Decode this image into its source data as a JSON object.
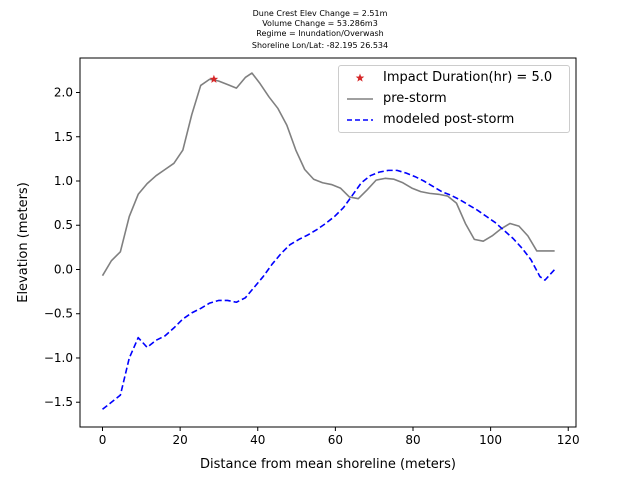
{
  "header": {
    "lines": [
      "Dune Crest Elev Change = 2.51m",
      "Volume Change = 53.286m3",
      "Regime = Inundation/Overwash",
      "Shoreline Lon/Lat: -82.195 26.534"
    ]
  },
  "colors": {
    "pre_storm": "#808080",
    "post_storm": "#0000ff",
    "impact_marker": "#d62728"
  },
  "chart_data": {
    "type": "line",
    "xlabel": "Distance from mean shoreline (meters)",
    "ylabel": "Elevation (meters)",
    "xlim": [
      -5.8,
      122
    ],
    "ylim": [
      -1.78,
      2.39
    ],
    "xticks": [
      0,
      20,
      40,
      60,
      80,
      100,
      120
    ],
    "yticks": [
      -1.5,
      -1.0,
      -0.5,
      0.0,
      0.5,
      1.0,
      1.5,
      2.0
    ],
    "ytick_labels": [
      "−1.5",
      "−1.0",
      "−0.5",
      "0.0",
      "0.5",
      "1.0",
      "1.5",
      "2.0"
    ],
    "grid": false,
    "legend_position": "upper right",
    "series": [
      {
        "name": "pre-storm",
        "style": "solid",
        "color": "#808080",
        "x": [
          0,
          2.3,
          4.6,
          6.9,
          9.2,
          11.5,
          13.8,
          16.1,
          18.4,
          20.7,
          23.0,
          25.3,
          27.6,
          29.9,
          32.2,
          34.5,
          36.8,
          38.5,
          40.6,
          42.9,
          45.2,
          47.5,
          49.8,
          52.1,
          54.4,
          56.7,
          59.0,
          61.3,
          63.6,
          65.9,
          68.2,
          70.5,
          72.8,
          75.1,
          77.4,
          79.7,
          82.0,
          84.3,
          86.6,
          88.9,
          91.2,
          93.5,
          95.8,
          98.1,
          100.4,
          102.7,
          105.0,
          107.3,
          109.6,
          111.9,
          114.2,
          116.5
        ],
        "values": [
          -0.07,
          0.1,
          0.2,
          0.6,
          0.85,
          0.97,
          1.06,
          1.13,
          1.2,
          1.35,
          1.75,
          2.08,
          2.15,
          2.13,
          2.09,
          2.05,
          2.17,
          2.22,
          2.1,
          1.95,
          1.82,
          1.63,
          1.35,
          1.13,
          1.02,
          0.98,
          0.96,
          0.92,
          0.82,
          0.8,
          0.9,
          1.01,
          1.03,
          1.02,
          0.98,
          0.92,
          0.88,
          0.86,
          0.85,
          0.83,
          0.75,
          0.52,
          0.34,
          0.32,
          0.38,
          0.46,
          0.52,
          0.49,
          0.38,
          0.21,
          0.21,
          0.21
        ]
      },
      {
        "name": "modeled post-storm",
        "style": "dashed",
        "color": "#0000ff",
        "x": [
          0,
          2.3,
          4.6,
          6.9,
          9.2,
          11.5,
          13.8,
          16.1,
          18.4,
          20.7,
          23.0,
          25.3,
          27.6,
          29.9,
          32.2,
          34.5,
          36.8,
          39.1,
          41.4,
          43.7,
          46.0,
          48.3,
          50.6,
          52.9,
          55.2,
          57.5,
          59.8,
          62.1,
          64.4,
          66.7,
          69.0,
          71.3,
          73.6,
          75.9,
          78.2,
          80.5,
          82.8,
          85.1,
          87.4,
          89.7,
          92.0,
          94.3,
          96.6,
          98.9,
          101.2,
          103.5,
          105.8,
          108.1,
          110.4,
          112.7,
          114.0,
          116.5
        ],
        "values": [
          -1.58,
          -1.5,
          -1.42,
          -1.0,
          -0.77,
          -0.88,
          -0.8,
          -0.75,
          -0.66,
          -0.56,
          -0.49,
          -0.44,
          -0.38,
          -0.35,
          -0.35,
          -0.37,
          -0.32,
          -0.2,
          -0.08,
          0.06,
          0.18,
          0.28,
          0.34,
          0.39,
          0.45,
          0.52,
          0.6,
          0.7,
          0.84,
          0.98,
          1.06,
          1.1,
          1.12,
          1.12,
          1.09,
          1.05,
          1.0,
          0.94,
          0.88,
          0.84,
          0.79,
          0.73,
          0.67,
          0.6,
          0.53,
          0.44,
          0.35,
          0.24,
          0.11,
          -0.08,
          -0.12,
          0.0
        ]
      }
    ],
    "markers": [
      {
        "name": "Impact Duration(hr) = 5.0",
        "x": 28.7,
        "y": 2.15,
        "symbol": "star",
        "color": "#d62728"
      }
    ]
  }
}
